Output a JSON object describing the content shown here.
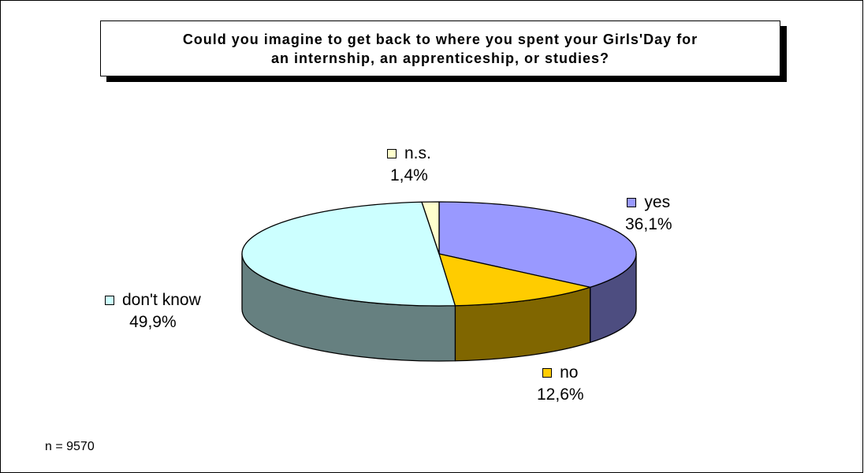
{
  "chart_data": {
    "type": "pie",
    "title_lines": [
      "Could you imagine to get back to where you spent your Girls'Day for",
      "an internship, an apprenticeship, or studies?"
    ],
    "slices": [
      {
        "name": "yes",
        "value": 36.1,
        "label": "36,1%",
        "color": "#9999ff",
        "side_color": "#4d4d80"
      },
      {
        "name": "no",
        "value": 12.6,
        "label": "12,6%",
        "color": "#ffcc00",
        "side_color": "#806600"
      },
      {
        "name": "don't know",
        "value": 49.9,
        "label": "49,9%",
        "color": "#ccffff",
        "side_color": "#668080"
      },
      {
        "name": "n.s.",
        "value": 1.4,
        "label": "1,4%",
        "color": "#ffffcc",
        "side_color": "#808066"
      }
    ],
    "note": "n = 9570"
  }
}
